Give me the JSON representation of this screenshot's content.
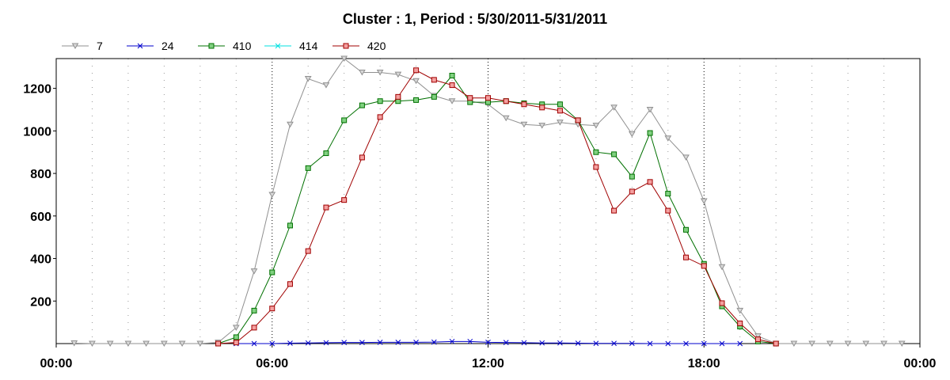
{
  "chart_data": {
    "type": "line",
    "title": "Cluster : 1, Period : 5/30/2011-5/31/2011",
    "xlabel": "",
    "ylabel": "",
    "x_range_hours": [
      0,
      24
    ],
    "ylim": [
      0,
      1340
    ],
    "x_ticks": [
      "00:00",
      "06:00",
      "12:00",
      "18:00",
      "00:00"
    ],
    "y_ticks": [
      200,
      400,
      600,
      800,
      1000,
      1200
    ],
    "grid": "dotted vertical lines every hour",
    "legend_position": "top-left",
    "series": [
      {
        "name": "7",
        "color": "#909090",
        "marker": "triangle-down",
        "x": [
          0.5,
          1,
          1.5,
          2,
          2.5,
          3,
          3.5,
          4,
          4.5,
          5,
          5.5,
          6,
          6.5,
          7,
          7.5,
          8,
          8.5,
          9,
          9.5,
          10,
          10.5,
          11,
          11.5,
          12,
          12.5,
          13,
          13.5,
          14,
          14.5,
          15,
          15.5,
          16,
          16.5,
          17,
          17.5,
          18,
          18.5,
          19,
          19.5,
          20,
          20.5,
          21,
          21.5,
          22,
          22.5,
          23,
          23.5
        ],
        "y": [
          2,
          0,
          0,
          0,
          0,
          0,
          0,
          0,
          5,
          75,
          340,
          700,
          1030,
          1245,
          1215,
          1340,
          1275,
          1275,
          1265,
          1235,
          1165,
          1140,
          1140,
          1125,
          1060,
          1030,
          1025,
          1040,
          1030,
          1025,
          1110,
          985,
          1100,
          965,
          875,
          670,
          360,
          155,
          35,
          0,
          0,
          0,
          0,
          0,
          0,
          0,
          0
        ]
      },
      {
        "name": "24",
        "color": "#0000cc",
        "marker": "x",
        "x": [
          5,
          5.5,
          6,
          6.5,
          7,
          7.5,
          8,
          8.5,
          9,
          9.5,
          10,
          10.5,
          11,
          11.5,
          12,
          12.5,
          13,
          13.5,
          14,
          14.5,
          15,
          15.5,
          16,
          16.5,
          17,
          17.5,
          18,
          18.5,
          19
        ],
        "y": [
          0,
          0,
          0,
          2,
          3,
          4,
          5,
          5,
          6,
          6,
          6,
          7,
          10,
          10,
          6,
          5,
          4,
          3,
          3,
          2,
          1,
          1,
          1,
          0,
          0,
          0,
          0,
          0,
          0
        ]
      },
      {
        "name": "410",
        "color": "#007000",
        "fill": "#80d080",
        "marker": "square",
        "x": [
          4.5,
          5,
          5.5,
          6,
          6.5,
          7,
          7.5,
          8,
          8.5,
          9,
          9.5,
          10,
          10.5,
          11,
          11.5,
          12,
          12.5,
          13,
          13.5,
          14,
          14.5,
          15,
          15.5,
          16,
          16.5,
          17,
          17.5,
          18,
          18.5,
          19,
          19.5,
          20
        ],
        "y": [
          0,
          30,
          155,
          335,
          555,
          825,
          895,
          1050,
          1120,
          1140,
          1140,
          1145,
          1160,
          1260,
          1135,
          1135,
          1140,
          1130,
          1125,
          1125,
          1050,
          900,
          890,
          785,
          990,
          705,
          535,
          375,
          175,
          80,
          10,
          0
        ]
      },
      {
        "name": "414",
        "color": "#00e0e0",
        "marker": "x",
        "x": [],
        "y": []
      },
      {
        "name": "420",
        "color": "#a00000",
        "fill": "#f4a0a0",
        "marker": "square",
        "x": [
          4.5,
          5,
          5.5,
          6,
          6.5,
          7,
          7.5,
          8,
          8.5,
          9,
          9.5,
          10,
          10.5,
          11,
          11.5,
          12,
          12.5,
          13,
          13.5,
          14,
          14.5,
          15,
          15.5,
          16,
          16.5,
          17,
          17.5,
          18,
          18.5,
          19,
          19.5,
          20
        ],
        "y": [
          0,
          5,
          75,
          165,
          280,
          435,
          640,
          675,
          875,
          1065,
          1160,
          1285,
          1240,
          1215,
          1155,
          1155,
          1140,
          1125,
          1110,
          1095,
          1050,
          830,
          625,
          715,
          760,
          625,
          405,
          365,
          190,
          95,
          20,
          0
        ]
      }
    ]
  }
}
